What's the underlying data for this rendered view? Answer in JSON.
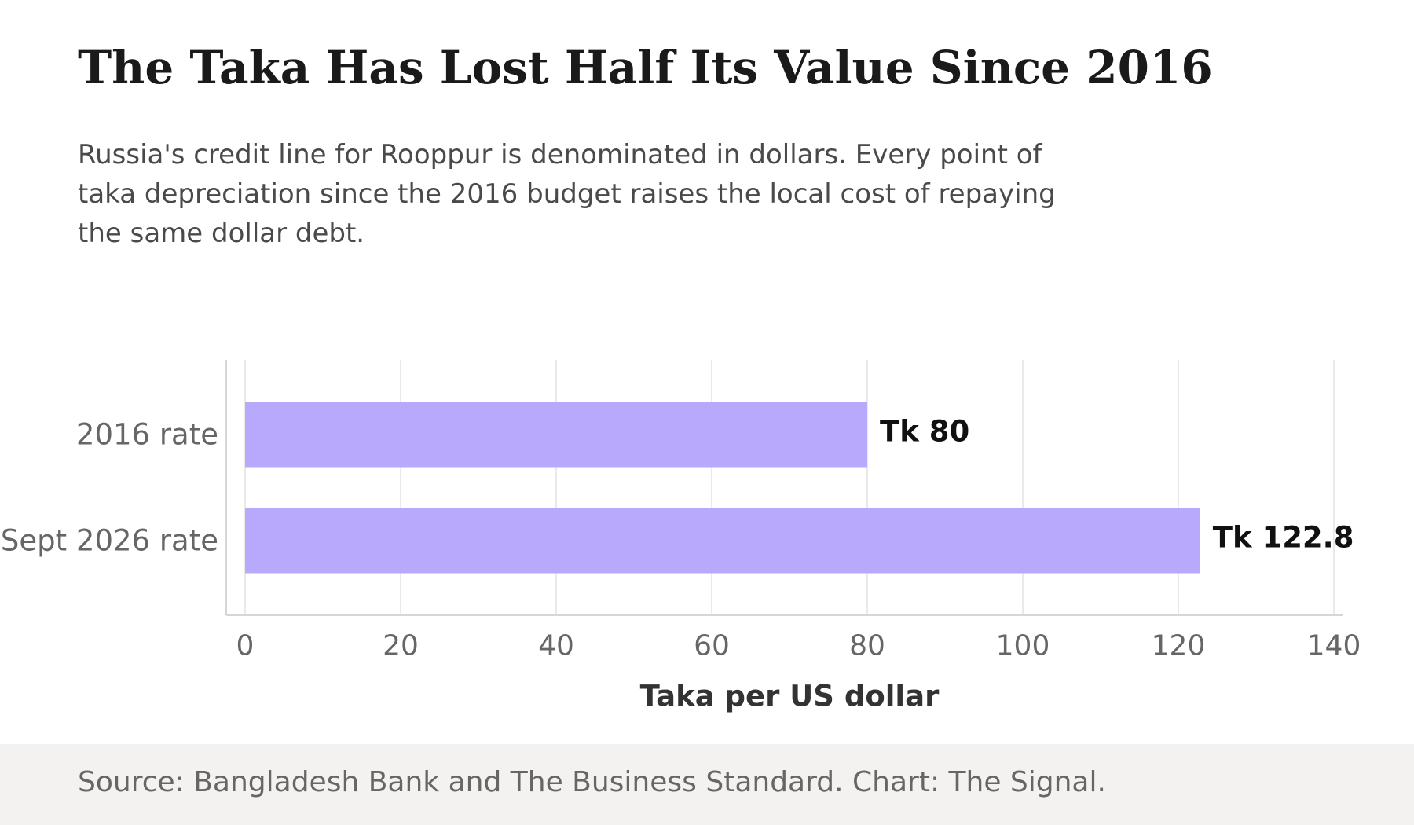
{
  "title": "The Taka Has Lost Half Its Value Since 2016",
  "subtitle": "Russia's credit line for Rooppur is denominated in dollars. Every point of taka depreciation since the 2016 budget raises the local cost of repaying the same dollar debt.",
  "source": "Source: Bangladesh Bank and The Business Standard. Chart: The Signal.",
  "chart_data": {
    "type": "bar",
    "orientation": "horizontal",
    "categories": [
      "2016 rate",
      "Sept 2026 rate"
    ],
    "values": [
      80,
      122.8
    ],
    "data_labels": [
      "Tk 80",
      "Tk 122.8"
    ],
    "xlabel": "Taka per US dollar",
    "ylabel": "",
    "xlim": [
      0,
      140
    ],
    "xticks": [
      0,
      20,
      40,
      60,
      80,
      100,
      120,
      140
    ],
    "grid": "vertical",
    "legend": "none",
    "bar_color": "#b8a9fd",
    "gridline_color": "#e3e3e3",
    "axis_color": "#d6d6d6",
    "tick_label_color": "#666666",
    "data_label_color": "#111111",
    "axis_title_color": "#333333"
  }
}
